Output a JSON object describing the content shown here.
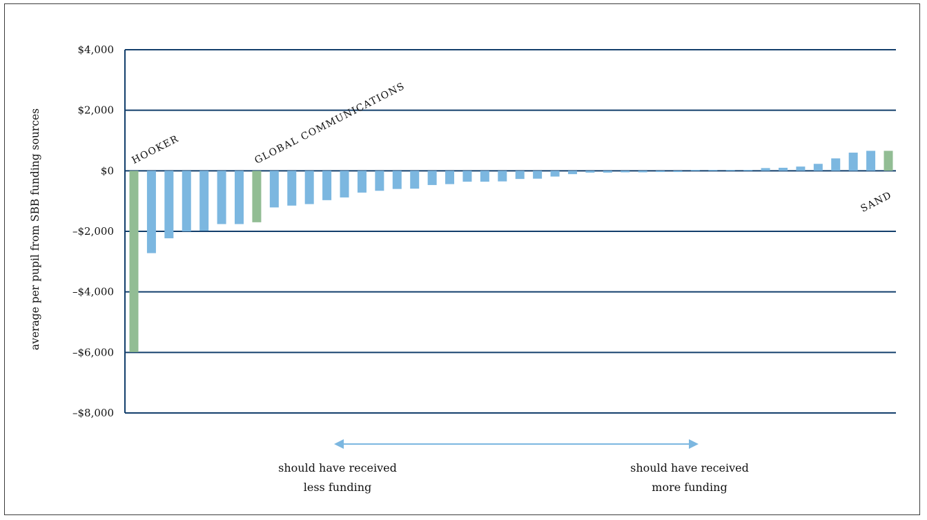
{
  "chart_data": {
    "type": "bar",
    "ylabel": "average per pupil from SBB funding sources",
    "ylim": [
      -8000,
      4000
    ],
    "y_ticks": [
      4000,
      2000,
      0,
      -2000,
      -4000,
      -6000,
      -8000
    ],
    "y_tick_labels": [
      "$4,000",
      "$2,000",
      "$0",
      "–$2,000",
      "–$4,000",
      "–$6,000",
      "–$8,000"
    ],
    "grid": true,
    "colors": {
      "default": "#7cb7e0",
      "highlight": "#92bd94",
      "grid": "#123e6b",
      "arrow": "#7cb7e0"
    },
    "values": [
      -5990,
      -2720,
      -2230,
      -2000,
      -1980,
      -1760,
      -1760,
      -1700,
      -1210,
      -1150,
      -1100,
      -970,
      -880,
      -720,
      -660,
      -600,
      -590,
      -470,
      -440,
      -360,
      -360,
      -350,
      -270,
      -260,
      -190,
      -110,
      -60,
      -60,
      -50,
      -50,
      -40,
      -40,
      30,
      30,
      30,
      30,
      90,
      100,
      140,
      230,
      410,
      600,
      660,
      660
    ],
    "highlight_indices": [
      0,
      7,
      43
    ],
    "annotations": [
      {
        "text": "HOOKER",
        "bar_index": 0,
        "placement": "above-rotated"
      },
      {
        "text": "GLOBAL COMMUNICATIONS",
        "bar_index": 7,
        "placement": "above-rotated"
      },
      {
        "text": "SAND",
        "bar_index": 43,
        "placement": "below-rotated"
      }
    ],
    "arrow_captions": [
      {
        "lines": [
          "should have received",
          "less funding"
        ]
      },
      {
        "lines": [
          "should have received",
          "more funding"
        ]
      }
    ]
  }
}
